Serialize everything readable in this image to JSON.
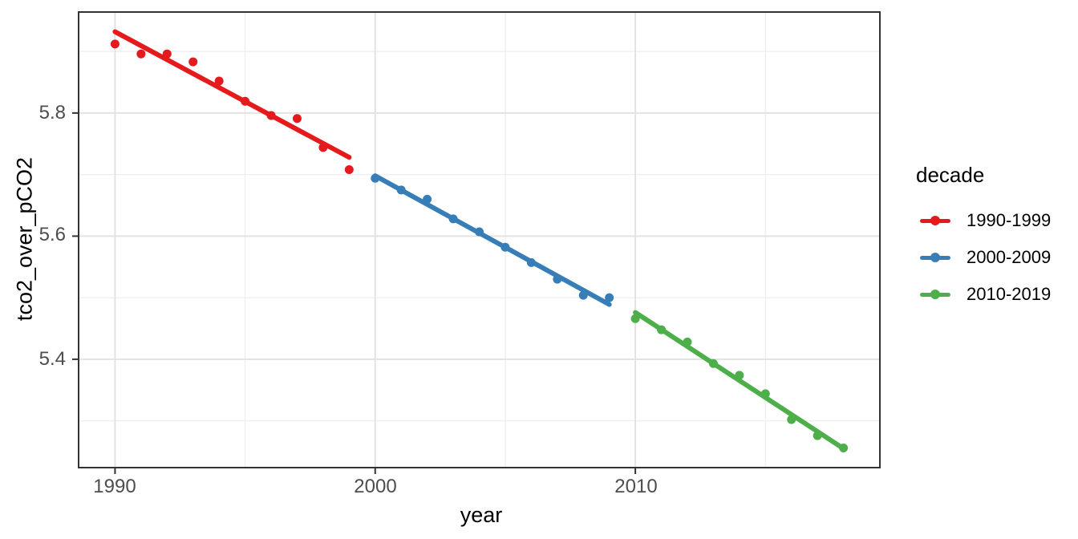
{
  "figure": {
    "background": "#FFFFFF",
    "panel_border_color": "#333333",
    "grid_major_color": "#E3E3E3",
    "grid_minor_color": "#EFEFEF",
    "tick_color": "#333333",
    "tick_label_color": "#4D4D4D"
  },
  "legend": {
    "title": "decade",
    "items": [
      {
        "label": "1990-1999",
        "color": "#E41A1C"
      },
      {
        "label": "2000-2009",
        "color": "#377EB8"
      },
      {
        "label": "2010-2019",
        "color": "#4DAF4A"
      }
    ]
  },
  "chart_data": {
    "type": "scatter",
    "title": "",
    "xlabel": "year",
    "ylabel": "tco2_over_pCO2",
    "xlim": [
      1988.6,
      2019.4
    ],
    "ylim": [
      5.224,
      5.964
    ],
    "x_major_ticks": [
      1990,
      2000,
      2010
    ],
    "x_tick_labels": [
      "1990",
      "2000",
      "2010"
    ],
    "x_minor_gridlines": [
      1995,
      2005,
      2015
    ],
    "y_major_ticks": [
      5.8,
      5.6,
      5.4
    ],
    "y_tick_labels": [
      "5.8",
      "5.6",
      "5.4"
    ],
    "y_minor_gridlines": [
      5.9,
      5.7,
      5.5,
      5.3
    ],
    "grid": "major+minor",
    "legend_position": "right",
    "legend_title": "decade",
    "series": [
      {
        "name": "1990-1999",
        "color": "#E41A1C",
        "x": [
          1990,
          1991,
          1992,
          1993,
          1994,
          1995,
          1996,
          1997,
          1998,
          1999
        ],
        "y": [
          5.912,
          5.896,
          5.896,
          5.883,
          5.852,
          5.819,
          5.796,
          5.791,
          5.744,
          5.708
        ],
        "trend": {
          "x": [
            1990,
            1999
          ],
          "y": [
            5.932,
            5.728
          ]
        }
      },
      {
        "name": "2000-2009",
        "color": "#377EB8",
        "x": [
          2000,
          2001,
          2002,
          2003,
          2004,
          2005,
          2006,
          2007,
          2008,
          2009
        ],
        "y": [
          5.694,
          5.675,
          5.66,
          5.628,
          5.607,
          5.582,
          5.557,
          5.53,
          5.504,
          5.5
        ],
        "trend": {
          "x": [
            2000,
            2009
          ],
          "y": [
            5.698,
            5.489
          ]
        }
      },
      {
        "name": "2010-2019",
        "color": "#4DAF4A",
        "x": [
          2010,
          2011,
          2012,
          2013,
          2014,
          2015,
          2016,
          2017,
          2018
        ],
        "y": [
          5.466,
          5.448,
          5.428,
          5.393,
          5.374,
          5.344,
          5.302,
          5.276,
          5.256
        ],
        "trend": {
          "x": [
            2010,
            2018
          ],
          "y": [
            5.476,
            5.255
          ]
        }
      }
    ]
  }
}
